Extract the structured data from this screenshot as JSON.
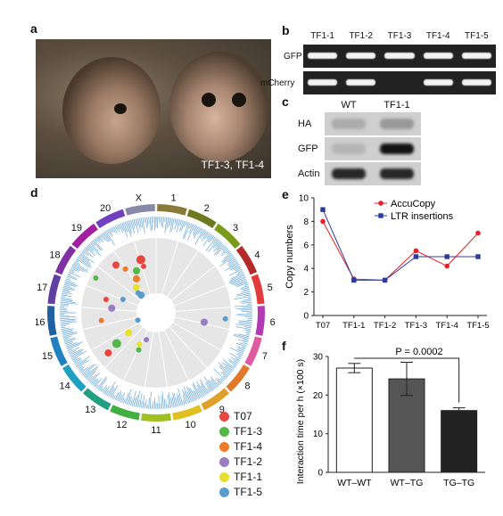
{
  "panels": {
    "a": {
      "letter": "a",
      "caption": "TF1-3, TF1-4"
    },
    "b": {
      "letter": "b",
      "lanes": [
        "TF1-1",
        "TF1-2",
        "TF1-3",
        "TF1-4",
        "TF1-5"
      ],
      "rows": [
        {
          "label": "GFP",
          "bands": [
            1,
            1,
            1,
            1,
            1
          ]
        },
        {
          "label": "mCherry",
          "bands": [
            1,
            1,
            0,
            1,
            1
          ]
        }
      ]
    },
    "c": {
      "letter": "c",
      "lanes": [
        "WT",
        "TF1-1"
      ],
      "rows": [
        {
          "label": "HA",
          "intensity": [
            0.15,
            0.25
          ]
        },
        {
          "label": "GFP",
          "intensity": [
            0.1,
            0.95
          ]
        },
        {
          "label": "Actin",
          "intensity": [
            0.85,
            0.85
          ]
        }
      ]
    },
    "d": {
      "letter": "d",
      "chromosomes": [
        "1",
        "2",
        "3",
        "4",
        "5",
        "6",
        "7",
        "8",
        "9",
        "10",
        "11",
        "12",
        "13",
        "14",
        "15",
        "16",
        "17",
        "18",
        "19",
        "20",
        "X"
      ],
      "chromosome_colors": [
        "#8a7a3a",
        "#6e7a1e",
        "#7a9a1a",
        "#b42a2a",
        "#e03a3a",
        "#b43ab4",
        "#e05aa0",
        "#e07a2a",
        "#e0a02a",
        "#e0c020",
        "#a0c020",
        "#40b040",
        "#20a080",
        "#20a0c0",
        "#2080c0",
        "#2060a0",
        "#6040a0",
        "#8030a0",
        "#a020a0",
        "#7040c0",
        "#8888a8"
      ],
      "legend": [
        {
          "name": "T07",
          "color": "#e8463c"
        },
        {
          "name": "TF1-3",
          "color": "#54b848"
        },
        {
          "name": "TF1-4",
          "color": "#f07a28"
        },
        {
          "name": "TF1-2",
          "color": "#9a7cc0"
        },
        {
          "name": "TF1-1",
          "color": "#e8e030"
        },
        {
          "name": "TF1-5",
          "color": "#5a9ccc"
        }
      ]
    },
    "e": {
      "letter": "e"
    },
    "f": {
      "letter": "f"
    }
  },
  "chart_data": [
    {
      "type": "line",
      "panel": "e",
      "categories": [
        "T07",
        "TF1-1",
        "TF1-2",
        "TF1-3",
        "TF1-4",
        "TF1-5"
      ],
      "series": [
        {
          "name": "AccuCopy",
          "color": "#e8202a",
          "marker": "circle",
          "values": [
            8,
            3.1,
            3,
            5.5,
            4.2,
            7
          ]
        },
        {
          "name": "LTR insertions",
          "color": "#2a3aa0",
          "marker": "square",
          "values": [
            9,
            3,
            3,
            5,
            5,
            5
          ]
        }
      ],
      "ylabel": "Copy numbers",
      "ylim": [
        0,
        10
      ],
      "yticks": [
        0,
        2,
        4,
        6,
        8,
        10
      ],
      "legend_position": "top-right"
    },
    {
      "type": "bar",
      "panel": "f",
      "categories": [
        "WT–WT",
        "WT–TG",
        "TG–TG"
      ],
      "values": [
        27,
        24.2,
        16
      ],
      "errors": [
        1.2,
        4.3,
        0.7
      ],
      "bar_colors": [
        "#ffffff",
        "#555555",
        "#222222"
      ],
      "ylabel": "Interaction time per h (×100 s)",
      "ylim": [
        0,
        30
      ],
      "yticks": [
        0,
        10,
        20,
        30
      ],
      "annotation": "P = 0.0002"
    }
  ]
}
